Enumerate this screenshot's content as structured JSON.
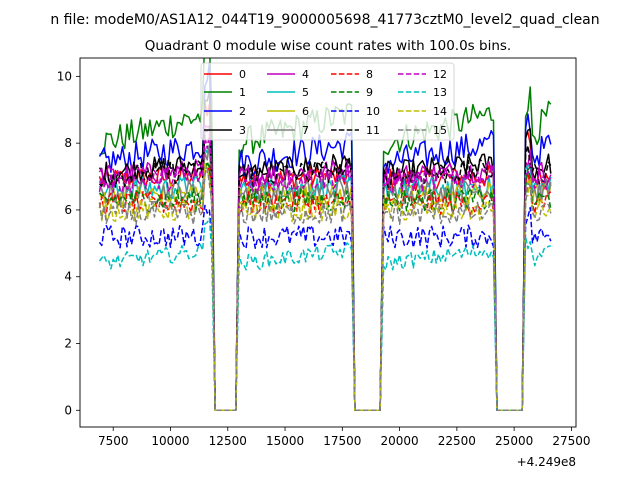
{
  "figure": {
    "suptitle": "n file: modeM0/AS1A12_044T19_9000005698_41773cztM0_level2_quad_clean",
    "title": "Quadrant 0 module wise count rates with 100.0s bins.",
    "offset_label": "+4.249e8"
  },
  "chart_data": {
    "type": "line",
    "title": "Quadrant 0 module wise count rates with 100.0s bins.",
    "xlabel": "",
    "ylabel": "",
    "x_offset": 424900000,
    "xlim": [
      6050,
      27700
    ],
    "ylim": [
      -0.5,
      10.55
    ],
    "xticks": [
      7500,
      10000,
      12500,
      15000,
      17500,
      20000,
      22500,
      25000,
      27500
    ],
    "yticks": [
      0,
      2,
      4,
      6,
      8,
      10
    ],
    "grid": false,
    "legend": {
      "placement": "top-center",
      "ncol": 4
    },
    "series": [
      {
        "name": "0",
        "color": "#ff0000",
        "dash": "solid",
        "base": 6.9,
        "noise": 0.35,
        "drift": 0.1
      },
      {
        "name": "1",
        "color": "#008000",
        "dash": "solid",
        "base": 8.0,
        "noise": 0.45,
        "drift": 0.9
      },
      {
        "name": "2",
        "color": "#0000ff",
        "dash": "solid",
        "base": 7.4,
        "noise": 0.45,
        "drift": 0.6
      },
      {
        "name": "3",
        "color": "#000000",
        "dash": "solid",
        "base": 7.1,
        "noise": 0.35,
        "drift": 0.3
      },
      {
        "name": "4",
        "color": "#bf00bf",
        "dash": "solid",
        "base": 7.0,
        "noise": 0.35,
        "drift": 0.2
      },
      {
        "name": "5",
        "color": "#00bfbf",
        "dash": "solid",
        "base": 6.6,
        "noise": 0.35,
        "drift": 0.1
      },
      {
        "name": "6",
        "color": "#bfbf00",
        "dash": "solid",
        "base": 6.4,
        "noise": 0.35,
        "drift": 0.1
      },
      {
        "name": "7",
        "color": "#808080",
        "dash": "solid",
        "base": 6.5,
        "noise": 0.35,
        "drift": 0.1
      },
      {
        "name": "8",
        "color": "#ff0000",
        "dash": "dashed",
        "base": 6.2,
        "noise": 0.35,
        "drift": 0.0
      },
      {
        "name": "9",
        "color": "#008000",
        "dash": "dashed",
        "base": 6.3,
        "noise": 0.35,
        "drift": 0.0
      },
      {
        "name": "10",
        "color": "#0000ff",
        "dash": "dashed",
        "base": 5.2,
        "noise": 0.35,
        "drift": 0.0
      },
      {
        "name": "11",
        "color": "#000000",
        "dash": "dashed",
        "base": 7.0,
        "noise": 0.35,
        "drift": 0.2
      },
      {
        "name": "12",
        "color": "#bf00bf",
        "dash": "dashed",
        "base": 6.8,
        "noise": 0.35,
        "drift": 0.2
      },
      {
        "name": "13",
        "color": "#00bfbf",
        "dash": "dashed",
        "base": 4.4,
        "noise": 0.25,
        "drift": 0.4
      },
      {
        "name": "14",
        "color": "#bfbf00",
        "dash": "dashed",
        "base": 6.0,
        "noise": 0.35,
        "drift": 0.0
      },
      {
        "name": "15",
        "color": "#808080",
        "dash": "dashed",
        "base": 5.9,
        "noise": 0.35,
        "drift": 0.0
      }
    ],
    "segments": [
      {
        "start": 6900,
        "end": 11800,
        "spike": 2.1,
        "spike_at": 11600
      },
      {
        "start": 13000,
        "end": 17900,
        "spike": 0.0,
        "spike_at": 17700
      },
      {
        "start": 19300,
        "end": 24100,
        "spike": 0.0,
        "spike_at": 23900
      },
      {
        "start": 25500,
        "end": 26600,
        "spike": 1.2,
        "spike_at": 25600
      }
    ],
    "gaps": [
      {
        "start": 11800,
        "end": 13000
      },
      {
        "start": 17900,
        "end": 19300
      },
      {
        "start": 24100,
        "end": 25500
      }
    ],
    "gap_value": 0
  }
}
